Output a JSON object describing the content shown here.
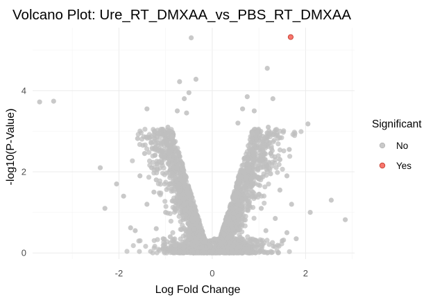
{
  "chart_data": {
    "type": "scatter",
    "title": "Volcano Plot: Ure_RT_DMXAA_vs_PBS_RT_DMXAA",
    "xlabel": "Log Fold Change",
    "ylabel": "-log10(P-Value)",
    "xlim": [
      -3.85,
      3.05
    ],
    "ylim": [
      -0.15,
      5.55
    ],
    "x_ticks": [
      -2,
      0,
      2
    ],
    "x_tick_labels": [
      "-2",
      "0",
      "2"
    ],
    "y_ticks": [
      0,
      2,
      4
    ],
    "y_tick_labels": [
      "0",
      "2",
      "4"
    ],
    "grid": true,
    "legend": {
      "title": "Significant",
      "placement": "right",
      "entries": [
        {
          "label": "No",
          "color": "#bfbfbf"
        },
        {
          "label": "Yes",
          "color": "#f8766d"
        }
      ]
    },
    "colors": {
      "No": "#bfbfbf",
      "Yes": "#f8766d",
      "Yes_outline": "#c0392b"
    },
    "series": [
      {
        "name": "Yes",
        "points": [
          [
            1.68,
            5.32
          ]
        ]
      },
      {
        "name": "No",
        "points": [
          [
            -3.7,
            3.72
          ],
          [
            -3.4,
            3.74
          ],
          [
            -0.45,
            5.3
          ],
          [
            1.18,
            4.55
          ],
          [
            -0.7,
            4.22
          ],
          [
            -0.35,
            4.28
          ],
          [
            -1.4,
            3.55
          ],
          [
            -1.6,
            2.82
          ],
          [
            -2.3,
            1.1
          ],
          [
            -2.05,
            1.7
          ],
          [
            -1.9,
            1.4
          ],
          [
            -1.75,
            0.62
          ],
          [
            -1.65,
            0.55
          ],
          [
            2.05,
            3.18
          ],
          [
            2.55,
            1.3
          ],
          [
            2.85,
            0.82
          ],
          [
            1.65,
            2.55
          ],
          [
            1.6,
            1.9
          ],
          [
            1.7,
            1.2
          ],
          [
            1.6,
            0.5
          ],
          [
            1.8,
            0.35
          ],
          [
            1.35,
            0.85
          ],
          [
            1.5,
            0.3
          ],
          [
            0.75,
            3.85
          ],
          [
            0.9,
            3.5
          ],
          [
            1.3,
            3.8
          ],
          [
            1.2,
            3.1
          ],
          [
            -0.95,
            3.1
          ],
          [
            -1.1,
            2.7
          ],
          [
            -1.3,
            2.1
          ],
          [
            -1.25,
            1.5
          ],
          [
            -1.05,
            0.35
          ],
          [
            -0.9,
            0.4
          ],
          [
            -1.45,
            2.45
          ],
          [
            -1.55,
            1.9
          ],
          [
            -1.4,
            1.2
          ],
          [
            1.4,
            2.9
          ],
          [
            1.45,
            2.3
          ],
          [
            1.45,
            1.55
          ],
          [
            -0.6,
            3.8
          ],
          [
            -0.55,
            3.45
          ],
          [
            0.55,
            3.2
          ],
          [
            0.65,
            3.55
          ],
          [
            -0.5,
            3.95
          ],
          [
            -0.75,
            3.5
          ],
          [
            0.85,
            2.95
          ],
          [
            -0.85,
            2.85
          ],
          [
            1.1,
            2.6
          ],
          [
            -1.15,
            2.95
          ],
          [
            1.25,
            2.45
          ],
          [
            -1.2,
            1.8
          ],
          [
            1.25,
            1.95
          ],
          [
            1.05,
            1.1
          ],
          [
            -1.0,
            1.0
          ],
          [
            0.95,
            0.3
          ],
          [
            -0.8,
            0.2
          ],
          [
            1.15,
            0.55
          ],
          [
            -1.2,
            0.6
          ],
          [
            2.1,
            1.0
          ],
          [
            -2.4,
            2.1
          ]
        ]
      }
    ]
  }
}
